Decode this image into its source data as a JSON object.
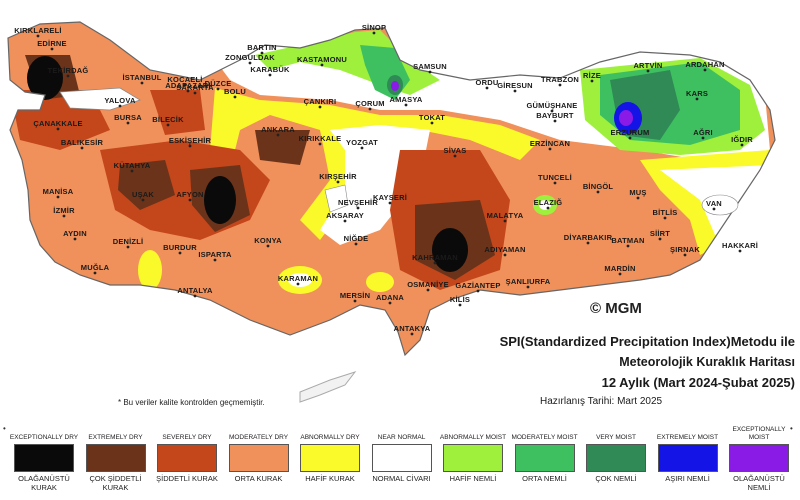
{
  "map": {
    "copyright": "© MGM",
    "note": "* Bu veriler kalite kontrolden geçmemiştir.",
    "title_line1": "SPI(Standardized Precipitation Index)Metodu ile",
    "title_line2": "Meteorolojik Kuraklık Haritası",
    "title_line3": "12 Aylık (Mart 2024-Şubat 2025)",
    "prepared": "Hazırlanış Tarihi: Mart 2025",
    "cities": [
      {
        "name": "KIRKLARELİ"
      },
      {
        "name": "EDİRNE"
      },
      {
        "name": "TEKİRDAĞ"
      },
      {
        "name": "İSTANBUL"
      },
      {
        "name": "KOCAELİ"
      },
      {
        "name": "SAKARYA"
      },
      {
        "name": "DÜZCE"
      },
      {
        "name": "BARTIN"
      },
      {
        "name": "ZONGULDAK"
      },
      {
        "name": "KARABÜK"
      },
      {
        "name": "KASTAMONU"
      },
      {
        "name": "SİNOP"
      },
      {
        "name": "SAMSUN"
      },
      {
        "name": "ORDU"
      },
      {
        "name": "GİRESUN"
      },
      {
        "name": "TRABZON"
      },
      {
        "name": "RİZE"
      },
      {
        "name": "ARTVİN"
      },
      {
        "name": "ARDAHAN"
      },
      {
        "name": "KARS"
      },
      {
        "name": "ERZURUM"
      },
      {
        "name": "AĞRI"
      },
      {
        "name": "IĞDIR"
      },
      {
        "name": "ADAPAZARI"
      },
      {
        "name": "BOLU"
      },
      {
        "name": "YALOVA"
      },
      {
        "name": "BURSA"
      },
      {
        "name": "BİLECİK"
      },
      {
        "name": "ÇANAKKALE"
      },
      {
        "name": "BALIKESİR"
      },
      {
        "name": "ESKİŞEHİR"
      },
      {
        "name": "ÇANKIRI"
      },
      {
        "name": "ÇORUM"
      },
      {
        "name": "AMASYA"
      },
      {
        "name": "TOKAT"
      },
      {
        "name": "GÜMÜŞHANE"
      },
      {
        "name": "BAYBURT"
      },
      {
        "name": "ANKARA"
      },
      {
        "name": "KIRIKKALE"
      },
      {
        "name": "YOZGAT"
      },
      {
        "name": "SİVAS"
      },
      {
        "name": "ERZİNCAN"
      },
      {
        "name": "KÜTAHYA"
      },
      {
        "name": "MANİSA"
      },
      {
        "name": "İZMİR"
      },
      {
        "name": "UŞAK"
      },
      {
        "name": "AFYON"
      },
      {
        "name": "KIRŞEHİR"
      },
      {
        "name": "NEVŞEHİR"
      },
      {
        "name": "KAYSERİ"
      },
      {
        "name": "AKSARAY"
      },
      {
        "name": "TUNCELİ"
      },
      {
        "name": "BİNGÖL"
      },
      {
        "name": "MUŞ"
      },
      {
        "name": "ELAZIĞ"
      },
      {
        "name": "MALATYA"
      },
      {
        "name": "BİTLİS"
      },
      {
        "name": "VAN"
      },
      {
        "name": "AYDIN"
      },
      {
        "name": "DENİZLİ"
      },
      {
        "name": "BURDUR"
      },
      {
        "name": "ISPARTA"
      },
      {
        "name": "KONYA"
      },
      {
        "name": "NİĞDE"
      },
      {
        "name": "DİYARBAKIR"
      },
      {
        "name": "BATMAN"
      },
      {
        "name": "SİİRT"
      },
      {
        "name": "HAKKARİ"
      },
      {
        "name": "ŞIRNAK"
      },
      {
        "name": "MARDİN"
      },
      {
        "name": "ADIYAMAN"
      },
      {
        "name": "KAHRAMAN"
      },
      {
        "name": "MUĞLA"
      },
      {
        "name": "ANTALYA"
      },
      {
        "name": "KARAMAN"
      },
      {
        "name": "MERSİN"
      },
      {
        "name": "ADANA"
      },
      {
        "name": "OSMANİYE"
      },
      {
        "name": "GAZİANTEP"
      },
      {
        "name": "KİLİS"
      },
      {
        "name": "ŞANLIURFA"
      },
      {
        "name": "ANTAKYA"
      }
    ]
  },
  "legend": [
    {
      "en": "EXCEPTIONALLY DRY",
      "tr": "OLAĞANÜSTÜ KURAK",
      "color": "#0a0a0a"
    },
    {
      "en": "EXTREMELY DRY",
      "tr": "ÇOK ŞİDDETLİ KURAK",
      "color": "#6b3319"
    },
    {
      "en": "SEVERELY DRY",
      "tr": "ŞİDDETLİ KURAK",
      "color": "#c4461b"
    },
    {
      "en": "MODERATELY DRY",
      "tr": "ORTA KURAK",
      "color": "#f0905a"
    },
    {
      "en": "ABNORMALLY DRY",
      "tr": "HAFİF KURAK",
      "color": "#fafa2a"
    },
    {
      "en": "NEAR NORMAL",
      "tr": "NORMAL CİVARI",
      "color": "#ffffff"
    },
    {
      "en": "ABNORMALLY MOIST",
      "tr": "HAFİF NEMLİ",
      "color": "#9ef03c"
    },
    {
      "en": "MODERATELY MOIST",
      "tr": "ORTA NEMLİ",
      "color": "#3fc060"
    },
    {
      "en": "VERY MOIST",
      "tr": "ÇOK NEMLİ",
      "color": "#2f8a55"
    },
    {
      "en": "EXTREMELY MOIST",
      "tr": "AŞIRI NEMLİ",
      "color": "#1414e6"
    },
    {
      "en": "EXCEPTIONALLY MOIST",
      "tr": "OLAĞANÜSTÜ NEMLİ",
      "color": "#8a1ae6"
    }
  ]
}
